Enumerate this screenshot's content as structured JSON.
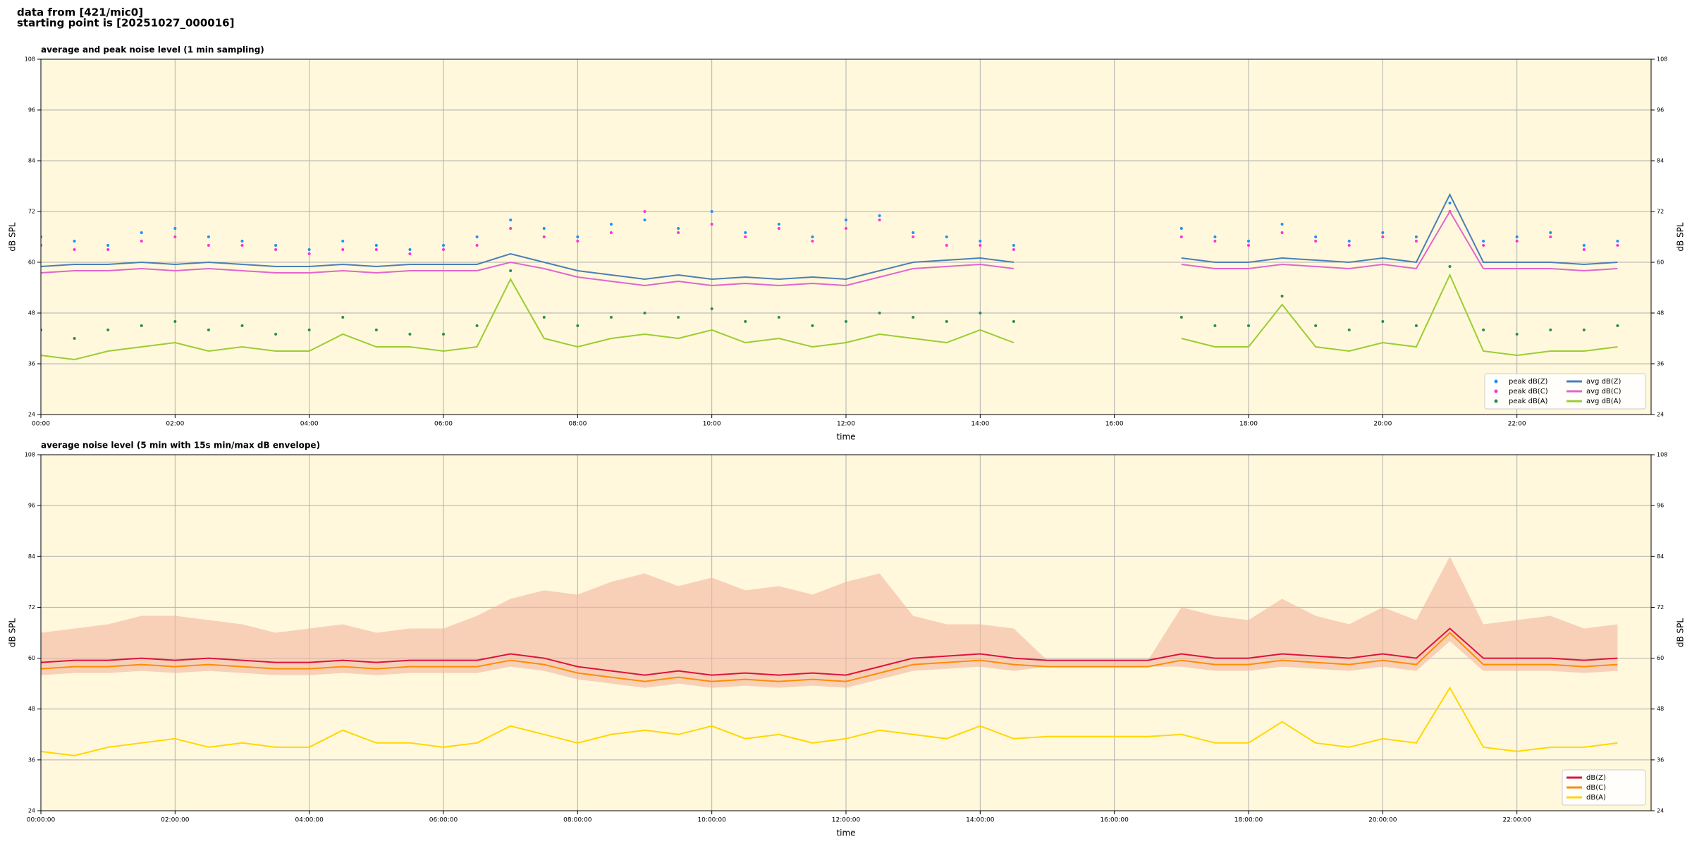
{
  "header": {
    "lines": [
      "data from [421/mic0]",
      "starting point is [20251027_000016]"
    ]
  },
  "chart_data": [
    {
      "type": "line",
      "title": "average and peak noise level (1 min sampling)",
      "x_label": "time",
      "y_label": "dB SPL",
      "xlim": [
        0,
        24
      ],
      "ylim": [
        24,
        108
      ],
      "xticks": [
        {
          "value": 0,
          "label": "00:00"
        },
        {
          "value": 2,
          "label": "02:00"
        },
        {
          "value": 4,
          "label": "04:00"
        },
        {
          "value": 6,
          "label": "06:00"
        },
        {
          "value": 8,
          "label": "08:00"
        },
        {
          "value": 10,
          "label": "10:00"
        },
        {
          "value": 12,
          "label": "12:00"
        },
        {
          "value": 14,
          "label": "14:00"
        },
        {
          "value": 16,
          "label": "16:00"
        },
        {
          "value": 18,
          "label": "18:00"
        },
        {
          "value": 20,
          "label": "20:00"
        },
        {
          "value": 22,
          "label": "22:00"
        }
      ],
      "yticks": [
        24,
        36,
        48,
        60,
        72,
        84,
        96,
        108
      ],
      "grid": true,
      "legend": "lower right",
      "legend_columns": 2,
      "x": [
        0,
        0.5,
        1,
        1.5,
        2,
        2.5,
        3,
        3.5,
        4,
        4.5,
        5,
        5.5,
        6,
        6.5,
        7,
        7.5,
        8,
        8.5,
        9,
        9.5,
        10,
        10.5,
        11,
        11.5,
        12,
        12.5,
        13,
        13.5,
        14,
        14.5,
        15,
        15.5,
        16,
        16.5,
        17,
        17.5,
        18,
        18.5,
        19,
        19.5,
        20,
        20.5,
        21,
        21.5,
        22,
        22.5,
        23,
        23.5
      ],
      "series": [
        {
          "name": "peak dB(Z)",
          "type": "scatter",
          "color": "#1e90ff",
          "values": [
            66,
            65,
            64,
            67,
            68,
            66,
            65,
            64,
            63,
            65,
            64,
            63,
            64,
            66,
            70,
            68,
            66,
            69,
            70,
            68,
            72,
            67,
            69,
            66,
            70,
            71,
            67,
            66,
            65,
            64,
            null,
            null,
            null,
            null,
            68,
            66,
            65,
            69,
            66,
            65,
            67,
            66,
            74,
            65,
            66,
            67,
            64,
            65
          ]
        },
        {
          "name": "peak dB(C)",
          "type": "scatter",
          "color": "#ff33cc",
          "values": [
            64,
            63,
            63,
            65,
            66,
            64,
            64,
            63,
            62,
            63,
            63,
            62,
            63,
            64,
            68,
            66,
            65,
            67,
            72,
            67,
            69,
            66,
            68,
            65,
            68,
            70,
            66,
            64,
            64,
            63,
            null,
            null,
            null,
            null,
            66,
            65,
            64,
            67,
            65,
            64,
            66,
            65,
            72,
            64,
            65,
            66,
            63,
            64
          ]
        },
        {
          "name": "peak dB(A)",
          "type": "scatter",
          "color": "#2e8b57",
          "values": [
            44,
            42,
            44,
            45,
            46,
            44,
            45,
            43,
            44,
            47,
            44,
            43,
            43,
            45,
            58,
            47,
            45,
            47,
            48,
            47,
            49,
            46,
            47,
            45,
            46,
            48,
            47,
            46,
            48,
            46,
            null,
            null,
            null,
            null,
            47,
            45,
            45,
            52,
            45,
            44,
            46,
            45,
            59,
            44,
            43,
            44,
            44,
            45
          ]
        },
        {
          "name": "avg dB(Z)",
          "type": "line",
          "color": "#4a7fb5",
          "values": [
            59,
            59.5,
            59.5,
            60,
            59.5,
            60,
            59.5,
            59,
            59,
            59.5,
            59,
            59.5,
            59.5,
            59.5,
            62,
            60,
            58,
            57,
            56,
            57,
            56,
            56.5,
            56,
            56.5,
            56,
            58,
            60,
            60.5,
            61,
            60,
            null,
            null,
            null,
            null,
            61,
            60,
            60,
            61,
            60.5,
            60,
            61,
            60,
            76,
            60,
            60,
            60,
            59.5,
            60
          ]
        },
        {
          "name": "avg dB(C)",
          "type": "line",
          "color": "#e066cc",
          "values": [
            57.5,
            58,
            58,
            58.5,
            58,
            58.5,
            58,
            57.5,
            57.5,
            58,
            57.5,
            58,
            58,
            58,
            60,
            58.5,
            56.5,
            55.5,
            54.5,
            55.5,
            54.5,
            55,
            54.5,
            55,
            54.5,
            56.5,
            58.5,
            59,
            59.5,
            58.5,
            null,
            null,
            null,
            null,
            59.5,
            58.5,
            58.5,
            59.5,
            59,
            58.5,
            59.5,
            58.5,
            72,
            58.5,
            58.5,
            58.5,
            58,
            58.5
          ]
        },
        {
          "name": "avg dB(A)",
          "type": "line",
          "color": "#9acd32",
          "values": [
            38,
            37,
            39,
            40,
            41,
            39,
            40,
            39,
            39,
            43,
            40,
            40,
            39,
            40,
            56,
            42,
            40,
            42,
            43,
            42,
            44,
            41,
            42,
            40,
            41,
            43,
            42,
            41,
            44,
            41,
            null,
            null,
            null,
            null,
            42,
            40,
            40,
            50,
            40,
            39,
            41,
            40,
            57,
            39,
            38,
            39,
            39,
            40
          ]
        }
      ]
    },
    {
      "type": "line",
      "title": "average noise level (5 min with 15s min/max dB envelope)",
      "x_label": "time",
      "y_label": "dB SPL",
      "xlim": [
        0,
        24
      ],
      "ylim": [
        24,
        108
      ],
      "xticks": [
        {
          "value": 0,
          "label": "00:00:00"
        },
        {
          "value": 2,
          "label": "02:00:00"
        },
        {
          "value": 4,
          "label": "04:00:00"
        },
        {
          "value": 6,
          "label": "06:00:00"
        },
        {
          "value": 8,
          "label": "08:00:00"
        },
        {
          "value": 10,
          "label": "10:00:00"
        },
        {
          "value": 12,
          "label": "12:00:00"
        },
        {
          "value": 14,
          "label": "14:00:00"
        },
        {
          "value": 16,
          "label": "16:00:00"
        },
        {
          "value": 18,
          "label": "18:00:00"
        },
        {
          "value": 20,
          "label": "20:00:00"
        },
        {
          "value": 22,
          "label": "22:00:00"
        }
      ],
      "yticks": [
        24,
        36,
        48,
        60,
        72,
        84,
        96,
        108
      ],
      "grid": true,
      "legend": "lower right",
      "legend_columns": 1,
      "x": [
        0,
        0.5,
        1,
        1.5,
        2,
        2.5,
        3,
        3.5,
        4,
        4.5,
        5,
        5.5,
        6,
        6.5,
        7,
        7.5,
        8,
        8.5,
        9,
        9.5,
        10,
        10.5,
        11,
        11.5,
        12,
        12.5,
        13,
        13.5,
        14,
        14.5,
        15,
        15.5,
        16,
        16.5,
        17,
        17.5,
        18,
        18.5,
        19,
        19.5,
        20,
        20.5,
        21,
        21.5,
        22,
        22.5,
        23,
        23.5
      ],
      "envelope": {
        "color": "#f4b6a0",
        "low": [
          56,
          56.5,
          56.5,
          57,
          56.5,
          57,
          56.5,
          56,
          56,
          56.5,
          56,
          56.5,
          56.5,
          56.5,
          58,
          57,
          55,
          54,
          53,
          54,
          53,
          53.5,
          53,
          53.5,
          53,
          55,
          57,
          57.5,
          58,
          57,
          58,
          58,
          58,
          58,
          58,
          57,
          57,
          58,
          57.5,
          57,
          58,
          57,
          64,
          57,
          57,
          57,
          56.5,
          57
        ],
        "high": [
          66,
          67,
          68,
          70,
          70,
          69,
          68,
          66,
          67,
          68,
          66,
          67,
          67,
          70,
          74,
          76,
          75,
          78,
          80,
          77,
          79,
          76,
          77,
          75,
          78,
          80,
          70,
          68,
          68,
          67,
          59.5,
          59.5,
          59.5,
          59.5,
          72,
          70,
          69,
          74,
          70,
          68,
          72,
          69,
          84,
          68,
          69,
          70,
          67,
          68
        ]
      },
      "series": [
        {
          "name": "dB(Z)",
          "type": "line",
          "color": "#dc143c",
          "values": [
            59,
            59.5,
            59.5,
            60,
            59.5,
            60,
            59.5,
            59,
            59,
            59.5,
            59,
            59.5,
            59.5,
            59.5,
            61,
            60,
            58,
            57,
            56,
            57,
            56,
            56.5,
            56,
            56.5,
            56,
            58,
            60,
            60.5,
            61,
            60,
            59.5,
            59.5,
            59.5,
            59.5,
            61,
            60,
            60,
            61,
            60.5,
            60,
            61,
            60,
            67,
            60,
            60,
            60,
            59.5,
            60
          ]
        },
        {
          "name": "dB(C)",
          "type": "line",
          "color": "#ff8c00",
          "values": [
            57.5,
            58,
            58,
            58.5,
            58,
            58.5,
            58,
            57.5,
            57.5,
            58,
            57.5,
            58,
            58,
            58,
            59.5,
            58.5,
            56.5,
            55.5,
            54.5,
            55.5,
            54.5,
            55,
            54.5,
            55,
            54.5,
            56.5,
            58.5,
            59,
            59.5,
            58.5,
            58,
            58,
            58,
            58,
            59.5,
            58.5,
            58.5,
            59.5,
            59,
            58.5,
            59.5,
            58.5,
            66,
            58.5,
            58.5,
            58.5,
            58,
            58.5
          ]
        },
        {
          "name": "dB(A)",
          "type": "line",
          "color": "#ffd700",
          "values": [
            38,
            37,
            39,
            40,
            41,
            39,
            40,
            39,
            39,
            43,
            40,
            40,
            39,
            40,
            44,
            42,
            40,
            42,
            43,
            42,
            44,
            41,
            42,
            40,
            41,
            43,
            42,
            41,
            44,
            41,
            41.5,
            41.5,
            41.5,
            41.5,
            42,
            40,
            40,
            45,
            40,
            39,
            41,
            40,
            53,
            39,
            38,
            39,
            39,
            40
          ]
        }
      ]
    }
  ]
}
